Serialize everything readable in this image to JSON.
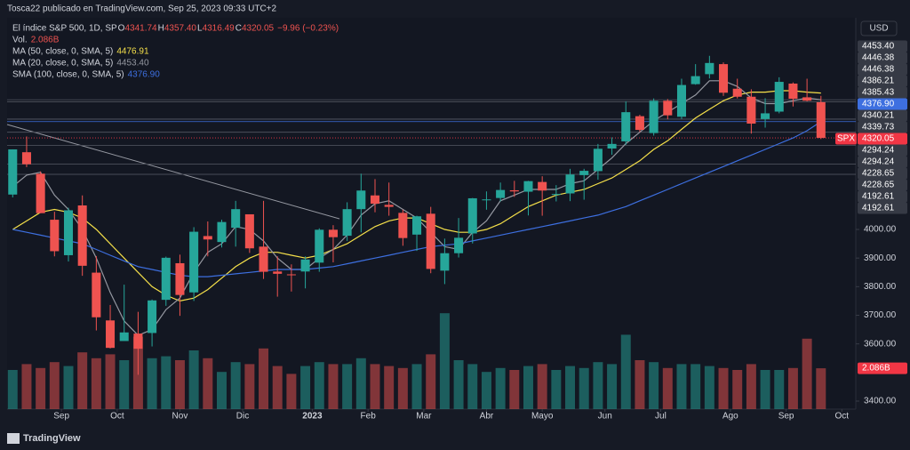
{
  "chart_data": {
    "type": "candlestick",
    "publisher": "Tosca22 publicado en TradingView.com, Sep 25, 2023 09:33 UTC+2",
    "title": "El índice S&P 500, 1D, SP",
    "ohlc": [
      {
        "key": "O",
        "value": "4341.74"
      },
      {
        "key": "H",
        "value": "4357.40"
      },
      {
        "key": "L",
        "value": "4316.49"
      },
      {
        "key": "C",
        "value": "4320.05"
      }
    ],
    "change": "−9.96 (−0.23%)",
    "volume_name": "Vol.",
    "volume_label": "2.086B",
    "currency": "USD",
    "symbol": "SPX",
    "brand": "TradingView",
    "up_color": "#26a69a",
    "down_color": "#ef5350",
    "open": [
      4122,
      4270,
      4195,
      4034,
      3910,
      4084,
      3849,
      3682,
      3610,
      3636,
      3638,
      3754,
      3882,
      3780,
      3977,
      3956,
      4006,
      4053,
      3940,
      3853,
      3843,
      3853,
      3884,
      3999,
      3978,
      4071,
      4119,
      4086,
      4058,
      3982,
      4055,
      3856,
      3917,
      3986,
      4102,
      4110,
      4137,
      4132,
      4166,
      4123,
      4126,
      4190,
      4204,
      4283,
      4308,
      4396,
      4337,
      4450,
      4394,
      4508,
      4543,
      4578,
      4492,
      4464,
      4386,
      4412,
      4510,
      4462,
      4445
    ],
    "high": [
      4280,
      4325,
      4203,
      4062,
      4076,
      4119,
      3907,
      3736,
      3807,
      3712,
      3755,
      3905,
      3912,
      4008,
      4028,
      4034,
      4100,
      4053,
      4100,
      3906,
      3878,
      3906,
      4004,
      4015,
      4095,
      4195,
      4176,
      4164,
      4069,
      4048,
      4079,
      3968,
      4040,
      4110,
      4133,
      4164,
      4170,
      4170,
      4186,
      4155,
      4212,
      4212,
      4299,
      4322,
      4448,
      4401,
      4458,
      4456,
      4527,
      4578,
      4607,
      4584,
      4527,
      4490,
      4459,
      4532,
      4514,
      4527,
      4467
    ],
    "low": [
      4112,
      4218,
      4057,
      3906,
      3888,
      3838,
      3647,
      3584,
      3612,
      3492,
      3591,
      3733,
      3698,
      3750,
      3906,
      3937,
      3940,
      3918,
      3827,
      3765,
      3783,
      3794,
      3852,
      3885,
      3960,
      3990,
      4060,
      4048,
      3943,
      3925,
      3847,
      3809,
      3902,
      3951,
      4069,
      4098,
      4114,
      4049,
      4048,
      4098,
      4099,
      4104,
      4174,
      4261,
      4296,
      4341,
      4328,
      4385,
      4386,
      4506,
      4528,
      4467,
      4458,
      4335,
      4356,
      4406,
      4430,
      4448,
      4316
    ],
    "close": [
      4280,
      4228,
      4057,
      3924,
      4067,
      3873,
      3693,
      3586,
      3640,
      3583,
      3752,
      3901,
      3771,
      3992,
      3965,
      4026,
      4071,
      3934,
      3852,
      3845,
      3840,
      3895,
      3999,
      3973,
      4071,
      4136,
      4090,
      4079,
      3970,
      4046,
      3862,
      3917,
      3971,
      4109,
      4105,
      4138,
      4133,
      4169,
      4136,
      4124,
      4192,
      4205,
      4282,
      4299,
      4410,
      4348,
      4450,
      4399,
      4505,
      4536,
      4582,
      4478,
      4464,
      4370,
      4406,
      4516,
      4457,
      4450,
      4320
    ],
    "volume": [
      2.0,
      2.3,
      2.1,
      2.4,
      2.2,
      2.9,
      2.6,
      2.8,
      2.5,
      3.7,
      2.6,
      2.7,
      2.5,
      3.0,
      2.6,
      1.9,
      2.4,
      2.3,
      3.1,
      2.2,
      1.8,
      2.2,
      2.4,
      2.3,
      2.3,
      2.6,
      2.3,
      2.2,
      2.1,
      2.3,
      2.8,
      4.9,
      2.5,
      2.3,
      1.9,
      2.1,
      2.0,
      2.2,
      2.3,
      2.0,
      2.2,
      2.1,
      2.4,
      2.3,
      3.8,
      2.5,
      2.4,
      2.1,
      2.3,
      2.3,
      2.2,
      2.1,
      2.0,
      2.3,
      2.0,
      2.0,
      2.1,
      3.6,
      2.086
    ],
    "indicators": [
      {
        "name": "MA (50, close, 0, SMA, 5)",
        "value": "4476.91",
        "color": "#f5e04a",
        "values": [
          4000,
          4030,
          4060,
          4070,
          4060,
          4040,
          4000,
          3950,
          3900,
          3850,
          3800,
          3770,
          3750,
          3760,
          3790,
          3830,
          3870,
          3900,
          3920,
          3920,
          3910,
          3900,
          3910,
          3930,
          3950,
          3980,
          4010,
          4030,
          4040,
          4040,
          4020,
          4000,
          3990,
          3990,
          4000,
          4020,
          4050,
          4080,
          4100,
          4120,
          4130,
          4140,
          4160,
          4180,
          4210,
          4240,
          4280,
          4310,
          4350,
          4390,
          4420,
          4450,
          4470,
          4480,
          4480,
          4485,
          4485,
          4480,
          4476.91
        ]
      },
      {
        "name": "MA (20, close, 0, SMA, 5)",
        "value": "4453.40",
        "color": "#9598a1",
        "values": [
          4150,
          4190,
          4200,
          4120,
          4070,
          4000,
          3900,
          3780,
          3680,
          3630,
          3650,
          3720,
          3760,
          3850,
          3920,
          3950,
          4010,
          4000,
          3960,
          3900,
          3860,
          3860,
          3900,
          3930,
          3980,
          4050,
          4090,
          4100,
          4070,
          4040,
          3990,
          3940,
          3930,
          3990,
          4030,
          4100,
          4120,
          4140,
          4140,
          4140,
          4160,
          4170,
          4210,
          4250,
          4300,
          4340,
          4380,
          4410,
          4440,
          4470,
          4520,
          4520,
          4500,
          4460,
          4440,
          4440,
          4450,
          4460,
          4453.4
        ]
      },
      {
        "name": "SMA (100, close, 0, SMA, 5)",
        "value": "4376.90",
        "color": "#3d6fe0",
        "values": [
          4000,
          3990,
          3980,
          3970,
          3960,
          3950,
          3930,
          3910,
          3890,
          3870,
          3860,
          3850,
          3840,
          3835,
          3835,
          3840,
          3845,
          3850,
          3855,
          3860,
          3860,
          3860,
          3865,
          3870,
          3880,
          3890,
          3900,
          3910,
          3920,
          3930,
          3940,
          3945,
          3950,
          3960,
          3970,
          3980,
          3990,
          4000,
          4010,
          4020,
          4030,
          4040,
          4050,
          4065,
          4080,
          4100,
          4120,
          4140,
          4160,
          4180,
          4200,
          4220,
          4240,
          4260,
          4280,
          4300,
          4320,
          4345,
          4376.9
        ]
      }
    ],
    "price_levels": [
      {
        "value": 4453.4,
        "label": "4453.40",
        "color": "#363a45"
      },
      {
        "value": 4446.38,
        "label": "4446.38",
        "color": "#363a45"
      },
      {
        "value": 4446.38,
        "label": "4446.38",
        "color": "#363a45"
      },
      {
        "value": 4386.21,
        "label": "4386.21",
        "color": "#363a45"
      },
      {
        "value": 4385.43,
        "label": "4385.43",
        "color": "#363a45"
      },
      {
        "value": 4376.9,
        "label": "4376.90",
        "color": "#3d6fe0"
      },
      {
        "value": 4340.21,
        "label": "4340.21",
        "color": "#363a45"
      },
      {
        "value": 4339.73,
        "label": "4339.73",
        "color": "#363a45"
      },
      {
        "value": 4320.05,
        "label": "4320.05",
        "color": "#f23645"
      },
      {
        "value": 4294.24,
        "label": "4294.24",
        "color": "#363a45"
      },
      {
        "value": 4294.24,
        "label": "4294.24",
        "color": "#363a45"
      },
      {
        "value": 4228.65,
        "label": "4228.65",
        "color": "#363a45"
      },
      {
        "value": 4228.65,
        "label": "4228.65",
        "color": "#363a45"
      },
      {
        "value": 4192.61,
        "label": "4192.61",
        "color": "#363a45"
      },
      {
        "value": 4192.61,
        "label": "4192.61",
        "color": "#363a45"
      }
    ],
    "ylim": [
      3372,
      4740
    ],
    "yticks": [
      {
        "value": 3400,
        "label": "3400.00"
      },
      {
        "value": 3600,
        "label": "3600.00"
      },
      {
        "value": 3700,
        "label": "3700.00"
      },
      {
        "value": 3800,
        "label": "3800.00"
      },
      {
        "value": 3900,
        "label": "3900.00"
      },
      {
        "value": 4000,
        "label": "4000.00"
      }
    ],
    "xlim": [
      -0.4,
      60.5
    ],
    "xticks": [
      {
        "value": 3.5,
        "label": "Sep"
      },
      {
        "value": 7.5,
        "label": "Oct"
      },
      {
        "value": 12,
        "label": "Nov"
      },
      {
        "value": 16.5,
        "label": "Dic"
      },
      {
        "value": 21.5,
        "label": "2023"
      },
      {
        "value": 25.5,
        "label": "Feb"
      },
      {
        "value": 29.5,
        "label": "Mar"
      },
      {
        "value": 34,
        "label": "Abr"
      },
      {
        "value": 38,
        "label": "Mayo"
      },
      {
        "value": 42.5,
        "label": "Jun"
      },
      {
        "value": 46.5,
        "label": "Jul"
      },
      {
        "value": 51.5,
        "label": "Ago"
      },
      {
        "value": 55.5,
        "label": "Sep"
      },
      {
        "value": 59.5,
        "label": "Oct"
      }
    ],
    "vol_lim": [
      0,
      20
    ]
  }
}
